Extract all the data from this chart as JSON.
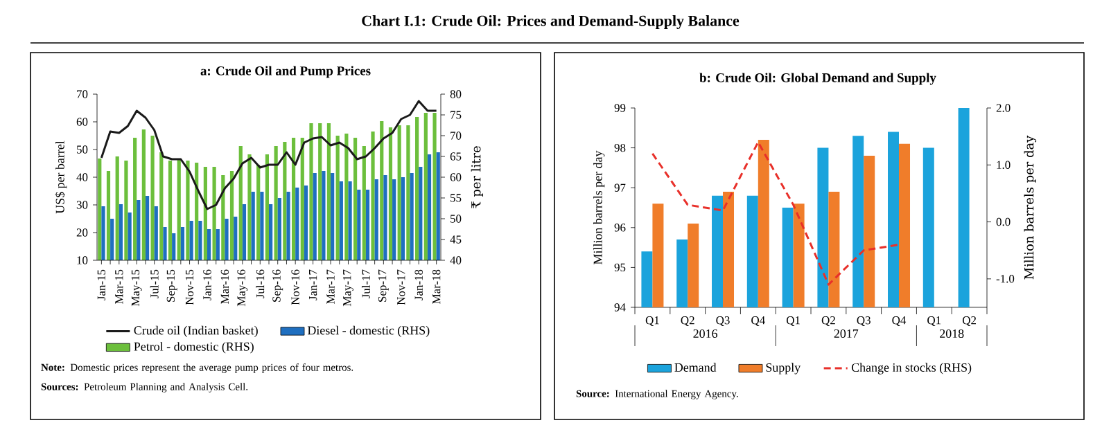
{
  "chart_data": [
    {
      "type": "bar",
      "title": "Chart I.1: Crude Oil: Prices and Demand-Supply Balance",
      "subtitle": "a: Crude Oil and Pump Prices",
      "ylabel": "US$ per barrel",
      "y2label": "₹ per litre",
      "categories": [
        "Jan-15",
        null,
        "Mar-15",
        null,
        "May-15",
        null,
        "Jul-15",
        null,
        "Sep-15",
        null,
        "Nov-15",
        null,
        "Jan-16",
        null,
        "Mar-16",
        null,
        "May-16",
        null,
        "Jul-16",
        null,
        "Sep-16",
        null,
        "Nov-16",
        null,
        "Jan-17",
        null,
        "Mar-17",
        null,
        "May-17",
        null,
        "Jul-17",
        null,
        "Sep-17",
        null,
        "Nov-17",
        null,
        "Jan-18",
        null,
        "Mar-18"
      ],
      "series": [
        {
          "name": "Crude oil (Indian basket)",
          "type": "line",
          "color": "#1a1a1a",
          "values": [
            47,
            56.5,
            56,
            58.5,
            64,
            61.5,
            57,
            47.5,
            46.5,
            46.5,
            42,
            35,
            28.5,
            30,
            36,
            39.5,
            45,
            47,
            43.5,
            44.5,
            44.5,
            49,
            44.5,
            52.5,
            54,
            54.5,
            51.5,
            52.5,
            50.5,
            46.5,
            47.5,
            50.5,
            54,
            56,
            61,
            62.5,
            67.5,
            64,
            64
          ]
        },
        {
          "name": "Petrol - domestic (RHS)",
          "axis": "y2",
          "color": "#6cbf3c",
          "values": [
            64.5,
            61.5,
            65,
            64,
            69.5,
            71.5,
            70,
            66,
            64,
            64.5,
            64,
            63.5,
            62.5,
            62.5,
            60.5,
            61.5,
            67.5,
            65.5,
            63,
            65.5,
            67.5,
            68.5,
            69.5,
            69.5,
            73,
            73,
            73,
            70,
            70.5,
            69.5,
            67.5,
            71,
            73.5,
            72,
            72.5,
            72.5,
            74.5,
            75.5,
            75.5
          ]
        },
        {
          "name": "Diesel - domestic (RHS)",
          "axis": "y2",
          "color": "#1f6fc0",
          "values": [
            53,
            50,
            53.5,
            51.5,
            54.5,
            55.5,
            53,
            48,
            46.5,
            48,
            49.5,
            49.5,
            47.5,
            47.5,
            50,
            50.5,
            53.5,
            56.5,
            56.5,
            53.5,
            55,
            56.5,
            57.5,
            58,
            61,
            61.5,
            61,
            59,
            59,
            57,
            57,
            59.5,
            60.5,
            59.5,
            60,
            61,
            62.5,
            65.5,
            66
          ]
        }
      ],
      "ylim": [
        10,
        70
      ],
      "yticks": [
        10,
        20,
        30,
        40,
        50,
        60,
        70
      ],
      "y2lim": [
        40,
        80
      ],
      "y2ticks": [
        40,
        45,
        50,
        55,
        60,
        65,
        70,
        75,
        80
      ],
      "legend": "bottom",
      "annotations": [
        "**Note:** Domestic prices represent the average pump prices of four metros.",
        "**Sources:** Petroleum Planning and Analysis Cell."
      ]
    },
    {
      "type": "bar",
      "subtitle": "b: Crude Oil: Global Demand and Supply",
      "ylabel": "Million barrels per day",
      "y2label": "Million barrels per day",
      "categories": [
        "Q1",
        "Q2",
        "Q3",
        "Q4",
        "Q1",
        "Q2",
        "Q3",
        "Q4",
        "Q1",
        "Q2"
      ],
      "series": [
        {
          "name": "Demand",
          "color": "#1ba3dc",
          "values": [
            95.4,
            95.7,
            96.8,
            96.8,
            96.5,
            98.0,
            98.3,
            98.4,
            98.0,
            99.0
          ]
        },
        {
          "name": "Supply",
          "color": "#f07d2a",
          "values": [
            96.6,
            96.1,
            96.9,
            98.2,
            96.6,
            96.9,
            97.8,
            98.1,
            null,
            null
          ]
        },
        {
          "name": "Change in stocks (RHS)",
          "type": "line",
          "axis": "y2",
          "line_style": "dashed",
          "color": "#e8302a",
          "values": [
            1.2,
            0.3,
            0.2,
            1.4,
            0.3,
            -1.1,
            -0.5,
            -0.4,
            null,
            null
          ]
        }
      ],
      "ylim": [
        94,
        99
      ],
      "yticks": [
        94,
        95,
        96,
        97,
        98,
        99
      ],
      "y2lim": [
        -1.5,
        2
      ],
      "y2ticks": [
        {
          "value": -1,
          "label": "-1.0"
        },
        {
          "value": 0,
          "label": "0.0"
        },
        {
          "value": 1,
          "label": "1.0"
        },
        {
          "value": 2,
          "label": "2.0"
        }
      ],
      "legend": "bottom",
      "annotations": [
        "2016",
        "2017",
        "2018",
        "**Source:** International Energy Agency."
      ]
    }
  ]
}
